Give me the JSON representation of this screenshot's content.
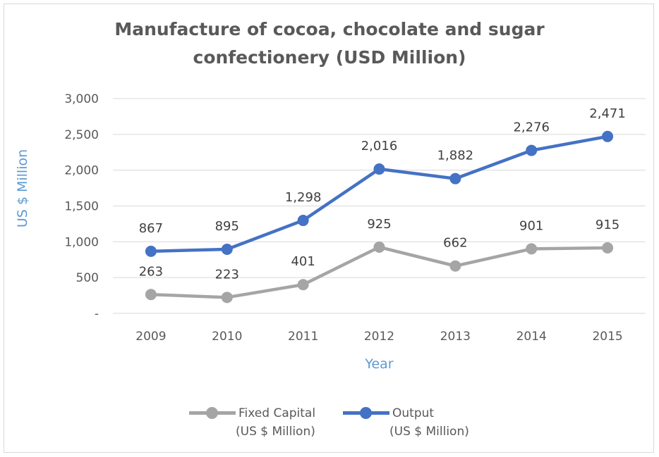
{
  "chart_data": {
    "type": "line",
    "title_lines": [
      "Manufacture of cocoa, chocolate and sugar",
      "confectionery (USD Million)"
    ],
    "xlabel": "Year",
    "ylabel": "US $ Million",
    "categories": [
      "2009",
      "2010",
      "2011",
      "2012",
      "2013",
      "2014",
      "2015"
    ],
    "ylim": [
      0,
      3000
    ],
    "y_ticks": [
      {
        "value": 0,
        "label": "-"
      },
      {
        "value": 500,
        "label": "500"
      },
      {
        "value": 1000,
        "label": "1,000"
      },
      {
        "value": 1500,
        "label": "1,500"
      },
      {
        "value": 2000,
        "label": "2,000"
      },
      {
        "value": 2500,
        "label": "2,500"
      },
      {
        "value": 3000,
        "label": "3,000"
      }
    ],
    "grid": true,
    "legend_position": "bottom",
    "series": [
      {
        "name_lines": [
          "Fixed Capital",
          "(US $ Million)"
        ],
        "color": "#a5a5a5",
        "values": [
          263,
          223,
          401,
          925,
          662,
          901,
          915
        ],
        "labels": [
          "263",
          "223",
          "401",
          "925",
          "662",
          "901",
          "915"
        ]
      },
      {
        "name_lines": [
          "Output",
          "(US $ Million)"
        ],
        "color": "#4472c4",
        "values": [
          867,
          895,
          1298,
          2016,
          1882,
          2276,
          2471
        ],
        "labels": [
          "867",
          "895",
          "1,298",
          "2,016",
          "1,882",
          "2,276",
          "2,471"
        ]
      }
    ]
  }
}
